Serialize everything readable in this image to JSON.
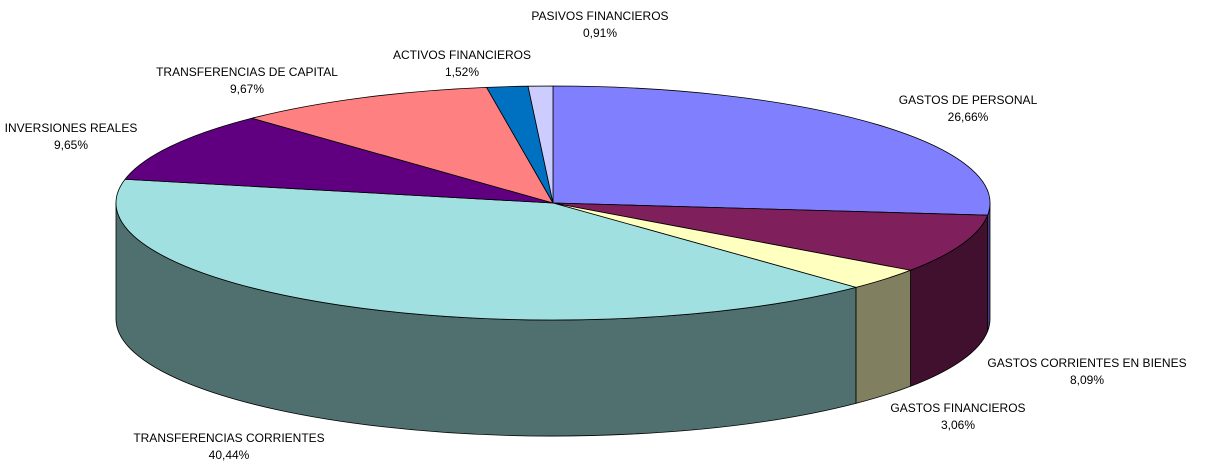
{
  "chart_data": {
    "type": "pie3d",
    "categories": [
      "GASTOS DE PERSONAL",
      "GASTOS CORRIENTES EN BIENES",
      "GASTOS FINANCIEROS",
      "TRANSFERENCIAS CORRIENTES",
      "INVERSIONES REALES",
      "TRANSFERENCIAS DE CAPITAL",
      "ACTIVOS FINANCIEROS",
      "PASIVOS FINANCIEROS"
    ],
    "values": [
      26.66,
      8.09,
      3.06,
      40.44,
      9.65,
      9.67,
      1.52,
      0.91
    ],
    "value_labels": [
      "26,66%",
      "8,09%",
      "3,06%",
      "40,44%",
      "9,65%",
      "9,67%",
      "1,52%",
      "0,91%"
    ],
    "colors": [
      "#8080ff",
      "#7f1f5c",
      "#ffffc0",
      "#a0e0e0",
      "#600080",
      "#ff8080",
      "#0070c0",
      "#ccccff"
    ]
  }
}
